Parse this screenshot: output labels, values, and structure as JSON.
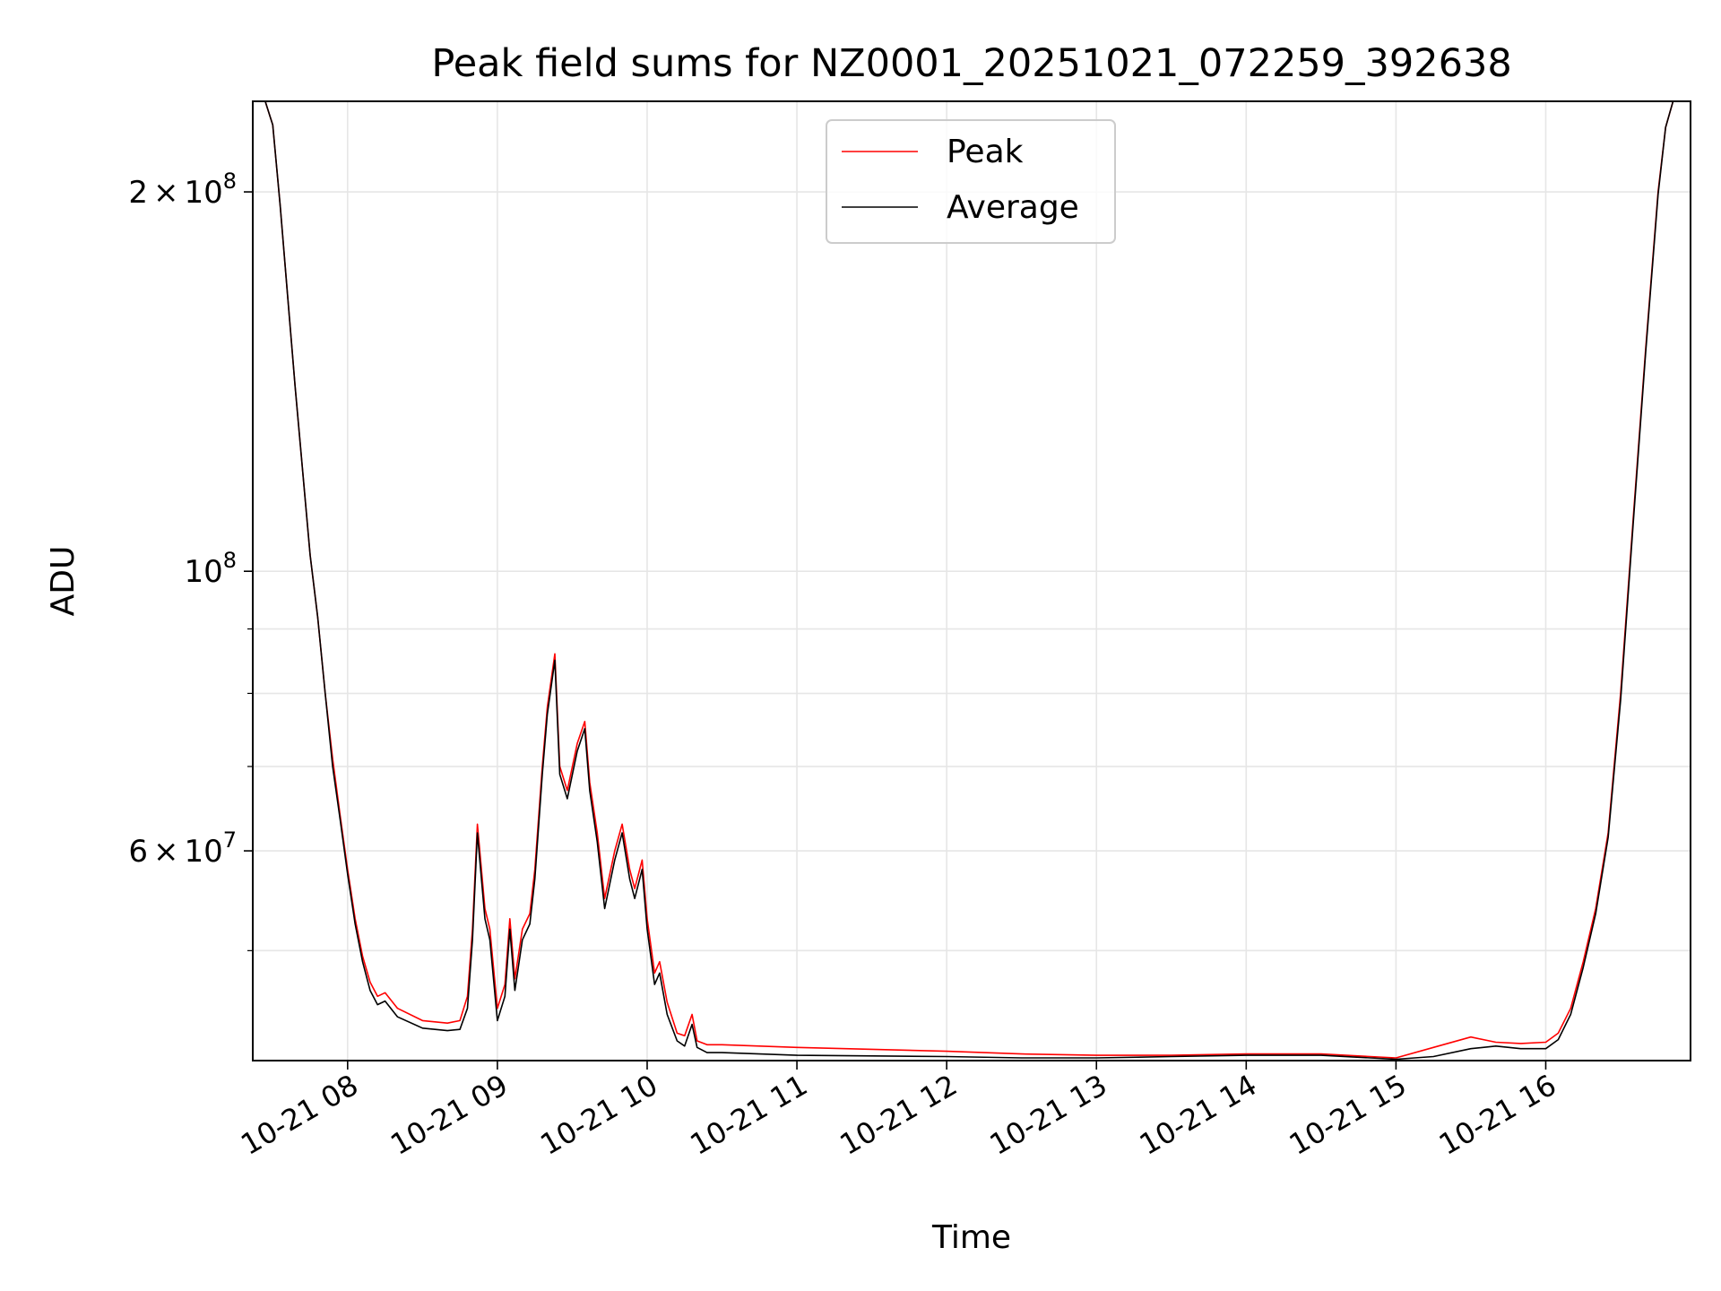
{
  "chart_data": {
    "type": "line",
    "title": "Peak field sums for NZ0001_20251021_072259_392638",
    "xlabel": "Time",
    "ylabel": "ADU",
    "y_scale": "log",
    "ylim": [
      40900000,
      236000000
    ],
    "xlim": [
      "2025-10-21 07:22",
      "2025-10-21 16:58"
    ],
    "grid": true,
    "legend_position": "upper center",
    "x_ticks": [
      "10-21 08",
      "10-21 09",
      "10-21 10",
      "10-21 11",
      "10-21 12",
      "10-21 13",
      "10-21 14",
      "10-21 15",
      "10-21 16"
    ],
    "x_tick_times": [
      "2025-10-21 08:00",
      "2025-10-21 09:00",
      "2025-10-21 10:00",
      "2025-10-21 11:00",
      "2025-10-21 12:00",
      "2025-10-21 13:00",
      "2025-10-21 14:00",
      "2025-10-21 15:00",
      "2025-10-21 16:00"
    ],
    "y_ticks": [
      {
        "value": 200000000,
        "mantissa": "2",
        "exponent": "8"
      },
      {
        "value": 100000000,
        "mantissa": "",
        "exponent": "8"
      },
      {
        "value": 60000000,
        "mantissa": "6",
        "exponent": "7"
      }
    ],
    "y_minor_ticks": [
      50000000,
      70000000,
      80000000,
      90000000
    ],
    "series": [
      {
        "name": "Peak",
        "color": "#ff0000",
        "x": [
          "2025-10-21 07:22",
          "2025-10-21 07:27",
          "2025-10-21 07:30",
          "2025-10-21 07:33",
          "2025-10-21 07:36",
          "2025-10-21 07:39",
          "2025-10-21 07:42",
          "2025-10-21 07:45",
          "2025-10-21 07:48",
          "2025-10-21 07:51",
          "2025-10-21 07:54",
          "2025-10-21 07:57",
          "2025-10-21 08:00",
          "2025-10-21 08:03",
          "2025-10-21 08:06",
          "2025-10-21 08:09",
          "2025-10-21 08:12",
          "2025-10-21 08:15",
          "2025-10-21 08:20",
          "2025-10-21 08:30",
          "2025-10-21 08:40",
          "2025-10-21 08:45",
          "2025-10-21 08:48",
          "2025-10-21 08:50",
          "2025-10-21 08:52",
          "2025-10-21 08:55",
          "2025-10-21 08:57",
          "2025-10-21 09:00",
          "2025-10-21 09:03",
          "2025-10-21 09:05",
          "2025-10-21 09:07",
          "2025-10-21 09:10",
          "2025-10-21 09:13",
          "2025-10-21 09:15",
          "2025-10-21 09:18",
          "2025-10-21 09:20",
          "2025-10-21 09:23",
          "2025-10-21 09:25",
          "2025-10-21 09:28",
          "2025-10-21 09:32",
          "2025-10-21 09:35",
          "2025-10-21 09:37",
          "2025-10-21 09:40",
          "2025-10-21 09:43",
          "2025-10-21 09:47",
          "2025-10-21 09:50",
          "2025-10-21 09:53",
          "2025-10-21 09:55",
          "2025-10-21 09:58",
          "2025-10-21 10:00",
          "2025-10-21 10:03",
          "2025-10-21 10:05",
          "2025-10-21 10:08",
          "2025-10-21 10:12",
          "2025-10-21 10:15",
          "2025-10-21 10:18",
          "2025-10-21 10:20",
          "2025-10-21 10:24",
          "2025-10-21 10:30",
          "2025-10-21 11:00",
          "2025-10-21 12:00",
          "2025-10-21 12:30",
          "2025-10-21 13:00",
          "2025-10-21 13:30",
          "2025-10-21 14:00",
          "2025-10-21 14:30",
          "2025-10-21 15:00",
          "2025-10-21 15:15",
          "2025-10-21 15:30",
          "2025-10-21 15:40",
          "2025-10-21 15:50",
          "2025-10-21 16:00",
          "2025-10-21 16:05",
          "2025-10-21 16:10",
          "2025-10-21 16:15",
          "2025-10-21 16:20",
          "2025-10-21 16:25",
          "2025-10-21 16:30",
          "2025-10-21 16:35",
          "2025-10-21 16:40",
          "2025-10-21 16:45",
          "2025-10-21 16:48",
          "2025-10-21 16:51",
          "2025-10-21 16:58"
        ],
        "y": [
          236000000,
          236000000,
          226000000,
          195000000,
          165000000,
          140000000,
          120000000,
          103000000,
          92000000,
          80000000,
          71000000,
          64000000,
          58000000,
          53000000,
          49500000,
          47200000,
          46000000,
          46300000,
          45000000,
          44000000,
          43800000,
          44000000,
          46000000,
          52000000,
          63000000,
          54000000,
          52000000,
          45000000,
          47000000,
          53000000,
          47500000,
          52000000,
          53500000,
          58000000,
          70000000,
          78000000,
          86000000,
          70000000,
          67000000,
          73000000,
          76000000,
          68000000,
          62000000,
          55000000,
          60000000,
          63000000,
          58000000,
          56000000,
          59000000,
          53000000,
          48000000,
          49000000,
          45500000,
          43000000,
          42800000,
          44500000,
          42400000,
          42100000,
          42100000,
          41900000,
          41600000,
          41400000,
          41300000,
          41300000,
          41400000,
          41400000,
          41100000,
          41900000,
          42700000,
          42300000,
          42200000,
          42300000,
          43000000,
          45000000,
          49000000,
          54000000,
          62000000,
          80000000,
          110000000,
          150000000,
          200000000,
          225000000,
          236000000,
          236000000
        ]
      },
      {
        "name": "Average",
        "color": "#000000",
        "x": [
          "2025-10-21 07:22",
          "2025-10-21 07:27",
          "2025-10-21 07:30",
          "2025-10-21 07:33",
          "2025-10-21 07:36",
          "2025-10-21 07:39",
          "2025-10-21 07:42",
          "2025-10-21 07:45",
          "2025-10-21 07:48",
          "2025-10-21 07:51",
          "2025-10-21 07:54",
          "2025-10-21 07:57",
          "2025-10-21 08:00",
          "2025-10-21 08:03",
          "2025-10-21 08:06",
          "2025-10-21 08:09",
          "2025-10-21 08:12",
          "2025-10-21 08:15",
          "2025-10-21 08:20",
          "2025-10-21 08:30",
          "2025-10-21 08:40",
          "2025-10-21 08:45",
          "2025-10-21 08:48",
          "2025-10-21 08:50",
          "2025-10-21 08:52",
          "2025-10-21 08:55",
          "2025-10-21 08:57",
          "2025-10-21 09:00",
          "2025-10-21 09:03",
          "2025-10-21 09:05",
          "2025-10-21 09:07",
          "2025-10-21 09:10",
          "2025-10-21 09:13",
          "2025-10-21 09:15",
          "2025-10-21 09:18",
          "2025-10-21 09:20",
          "2025-10-21 09:23",
          "2025-10-21 09:25",
          "2025-10-21 09:28",
          "2025-10-21 09:32",
          "2025-10-21 09:35",
          "2025-10-21 09:37",
          "2025-10-21 09:40",
          "2025-10-21 09:43",
          "2025-10-21 09:47",
          "2025-10-21 09:50",
          "2025-10-21 09:53",
          "2025-10-21 09:55",
          "2025-10-21 09:58",
          "2025-10-21 10:00",
          "2025-10-21 10:03",
          "2025-10-21 10:05",
          "2025-10-21 10:08",
          "2025-10-21 10:12",
          "2025-10-21 10:15",
          "2025-10-21 10:18",
          "2025-10-21 10:20",
          "2025-10-21 10:24",
          "2025-10-21 10:30",
          "2025-10-21 11:00",
          "2025-10-21 12:00",
          "2025-10-21 12:30",
          "2025-10-21 13:00",
          "2025-10-21 13:30",
          "2025-10-21 14:00",
          "2025-10-21 14:30",
          "2025-10-21 15:00",
          "2025-10-21 15:15",
          "2025-10-21 15:30",
          "2025-10-21 15:40",
          "2025-10-21 15:50",
          "2025-10-21 16:00",
          "2025-10-21 16:05",
          "2025-10-21 16:10",
          "2025-10-21 16:15",
          "2025-10-21 16:20",
          "2025-10-21 16:25",
          "2025-10-21 16:30",
          "2025-10-21 16:35",
          "2025-10-21 16:40",
          "2025-10-21 16:45",
          "2025-10-21 16:48",
          "2025-10-21 16:51",
          "2025-10-21 16:58"
        ],
        "y": [
          236000000,
          236000000,
          226000000,
          195000000,
          165000000,
          140000000,
          120000000,
          103000000,
          92000000,
          80000000,
          70000000,
          63500000,
          57500000,
          52500000,
          49000000,
          46500000,
          45300000,
          45600000,
          44300000,
          43400000,
          43200000,
          43300000,
          45000000,
          51000000,
          62000000,
          53000000,
          51000000,
          44000000,
          46000000,
          52000000,
          46500000,
          51000000,
          52500000,
          57000000,
          69000000,
          77000000,
          85000000,
          69000000,
          66000000,
          72000000,
          75000000,
          67000000,
          61000000,
          54000000,
          59000000,
          62000000,
          57000000,
          55000000,
          58000000,
          52000000,
          47000000,
          48000000,
          44500000,
          42400000,
          42000000,
          43700000,
          41900000,
          41500000,
          41500000,
          41300000,
          41200000,
          41100000,
          41100000,
          41200000,
          41300000,
          41300000,
          41000000,
          41200000,
          41800000,
          42000000,
          41800000,
          41800000,
          42500000,
          44500000,
          48500000,
          53500000,
          61500000,
          79000000,
          109000000,
          149000000,
          199000000,
          225000000,
          236000000,
          236000000
        ]
      }
    ]
  }
}
